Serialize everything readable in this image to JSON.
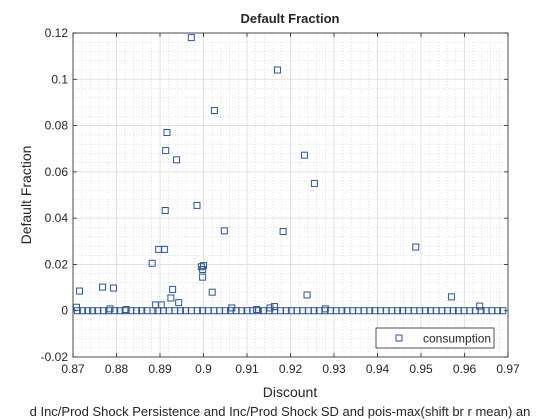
{
  "colors": {
    "background": "#ffffff",
    "axes_background": "#ffffff",
    "axis": "#262626",
    "grid_major": "#dcdcdc",
    "grid_minor": "#cfcfcf",
    "marker": "#2f5597"
  },
  "chart_data": {
    "type": "scatter",
    "title": "Default Fraction",
    "xlabel": "Discount",
    "ylabel": "Default Fraction",
    "footer_label": "d Inc/Prod Shock Persistence and Inc/Prod Shock SD and pois-max(shift br r mean) an",
    "xlim": [
      0.87,
      0.97
    ],
    "ylim": [
      -0.02,
      0.12
    ],
    "xticks": [
      0.87,
      0.88,
      0.89,
      0.9,
      0.91,
      0.92,
      0.93,
      0.94,
      0.95,
      0.96,
      0.97
    ],
    "xtick_labels": [
      "0.87",
      "0.88",
      "0.89",
      "0.9",
      "0.91",
      "0.92",
      "0.93",
      "0.94",
      "0.95",
      "0.96",
      "0.97"
    ],
    "yticks": [
      -0.02,
      0,
      0.02,
      0.04,
      0.06,
      0.08,
      0.1,
      0.12
    ],
    "ytick_labels": [
      "-0.02",
      "0",
      "0.02",
      "0.04",
      "0.06",
      "0.08",
      "0.1",
      "0.12"
    ],
    "grid": "major and minor",
    "legend": {
      "position": "bottom-right",
      "entries": [
        "consumption"
      ],
      "marker": "square"
    },
    "series": [
      {
        "name": "consumption",
        "marker": "square",
        "points": [
          {
            "x": 0.8708,
            "y": 0.0015
          },
          {
            "x": 0.8715,
            "y": 0.0085
          },
          {
            "x": 0.8768,
            "y": 0.0102
          },
          {
            "x": 0.8793,
            "y": 0.0098
          },
          {
            "x": 0.8785,
            "y": 0.0008
          },
          {
            "x": 0.8822,
            "y": 0.0005
          },
          {
            "x": 0.8882,
            "y": 0.0205
          },
          {
            "x": 0.889,
            "y": 0.0025
          },
          {
            "x": 0.8897,
            "y": 0.0265
          },
          {
            "x": 0.8903,
            "y": 0.0025
          },
          {
            "x": 0.891,
            "y": 0.0265
          },
          {
            "x": 0.8912,
            "y": 0.0433
          },
          {
            "x": 0.8913,
            "y": 0.0692
          },
          {
            "x": 0.8916,
            "y": 0.077
          },
          {
            "x": 0.8925,
            "y": 0.0055
          },
          {
            "x": 0.8929,
            "y": 0.0092
          },
          {
            "x": 0.8938,
            "y": 0.0652
          },
          {
            "x": 0.8943,
            "y": 0.0035
          },
          {
            "x": 0.8972,
            "y": 0.118
          },
          {
            "x": 0.8985,
            "y": 0.0455
          },
          {
            "x": 0.8995,
            "y": 0.019
          },
          {
            "x": 0.8998,
            "y": 0.0145
          },
          {
            "x": 0.8998,
            "y": 0.0178
          },
          {
            "x": 0.9,
            "y": 0.0195
          },
          {
            "x": 0.902,
            "y": 0.008
          },
          {
            "x": 0.9025,
            "y": 0.0865
          },
          {
            "x": 0.9048,
            "y": 0.0345
          },
          {
            "x": 0.9065,
            "y": 0.0012
          },
          {
            "x": 0.9122,
            "y": 0.0005
          },
          {
            "x": 0.9153,
            "y": 0.0012
          },
          {
            "x": 0.9163,
            "y": 0.0018
          },
          {
            "x": 0.917,
            "y": 0.104
          },
          {
            "x": 0.9183,
            "y": 0.0342
          },
          {
            "x": 0.9232,
            "y": 0.0672
          },
          {
            "x": 0.9238,
            "y": 0.0068
          },
          {
            "x": 0.9255,
            "y": 0.055
          },
          {
            "x": 0.928,
            "y": 0.0008
          },
          {
            "x": 0.9488,
            "y": 0.0275
          },
          {
            "x": 0.957,
            "y": 0.006
          },
          {
            "x": 0.9635,
            "y": 0.002
          },
          {
            "x": 0.871,
            "y": 0
          },
          {
            "x": 0.8722,
            "y": 0
          },
          {
            "x": 0.8734,
            "y": 0
          },
          {
            "x": 0.8745,
            "y": 0
          },
          {
            "x": 0.8757,
            "y": 0
          },
          {
            "x": 0.877,
            "y": 0
          },
          {
            "x": 0.8782,
            "y": 0
          },
          {
            "x": 0.8796,
            "y": 0
          },
          {
            "x": 0.8808,
            "y": 0
          },
          {
            "x": 0.882,
            "y": 0
          },
          {
            "x": 0.8833,
            "y": 0
          },
          {
            "x": 0.8846,
            "y": 0
          },
          {
            "x": 0.8858,
            "y": 0
          },
          {
            "x": 0.887,
            "y": 0
          },
          {
            "x": 0.8884,
            "y": 0
          },
          {
            "x": 0.8895,
            "y": 0
          },
          {
            "x": 0.8908,
            "y": 0
          },
          {
            "x": 0.8921,
            "y": 0
          },
          {
            "x": 0.8934,
            "y": 0
          },
          {
            "x": 0.8947,
            "y": 0
          },
          {
            "x": 0.8959,
            "y": 0
          },
          {
            "x": 0.8972,
            "y": 0
          },
          {
            "x": 0.8986,
            "y": 0
          },
          {
            "x": 0.8998,
            "y": 0
          },
          {
            "x": 0.9011,
            "y": 0
          },
          {
            "x": 0.9024,
            "y": 0
          },
          {
            "x": 0.9037,
            "y": 0
          },
          {
            "x": 0.905,
            "y": 0
          },
          {
            "x": 0.9062,
            "y": 0
          },
          {
            "x": 0.9075,
            "y": 0
          },
          {
            "x": 0.9088,
            "y": 0
          },
          {
            "x": 0.91,
            "y": 0
          },
          {
            "x": 0.9113,
            "y": 0
          },
          {
            "x": 0.9126,
            "y": 0
          },
          {
            "x": 0.9138,
            "y": 0
          },
          {
            "x": 0.9151,
            "y": 0
          },
          {
            "x": 0.9164,
            "y": 0
          },
          {
            "x": 0.9177,
            "y": 0
          },
          {
            "x": 0.919,
            "y": 0
          },
          {
            "x": 0.9202,
            "y": 0
          },
          {
            "x": 0.9215,
            "y": 0
          },
          {
            "x": 0.9228,
            "y": 0
          },
          {
            "x": 0.9241,
            "y": 0
          },
          {
            "x": 0.9254,
            "y": 0
          },
          {
            "x": 0.9266,
            "y": 0
          },
          {
            "x": 0.9279,
            "y": 0
          },
          {
            "x": 0.9292,
            "y": 0
          },
          {
            "x": 0.9305,
            "y": 0
          },
          {
            "x": 0.9318,
            "y": 0
          },
          {
            "x": 0.933,
            "y": 0
          },
          {
            "x": 0.9343,
            "y": 0
          },
          {
            "x": 0.9356,
            "y": 0
          },
          {
            "x": 0.9369,
            "y": 0
          },
          {
            "x": 0.9382,
            "y": 0
          },
          {
            "x": 0.9394,
            "y": 0
          },
          {
            "x": 0.9407,
            "y": 0
          },
          {
            "x": 0.942,
            "y": 0
          },
          {
            "x": 0.9433,
            "y": 0
          },
          {
            "x": 0.9446,
            "y": 0
          },
          {
            "x": 0.9458,
            "y": 0
          },
          {
            "x": 0.9471,
            "y": 0
          },
          {
            "x": 0.9484,
            "y": 0
          },
          {
            "x": 0.9497,
            "y": 0
          },
          {
            "x": 0.951,
            "y": 0
          },
          {
            "x": 0.9522,
            "y": 0
          },
          {
            "x": 0.9535,
            "y": 0
          },
          {
            "x": 0.9548,
            "y": 0
          },
          {
            "x": 0.9561,
            "y": 0
          },
          {
            "x": 0.9574,
            "y": 0
          },
          {
            "x": 0.9586,
            "y": 0
          },
          {
            "x": 0.9599,
            "y": 0
          },
          {
            "x": 0.9612,
            "y": 0
          },
          {
            "x": 0.9625,
            "y": 0
          },
          {
            "x": 0.9638,
            "y": 0
          },
          {
            "x": 0.965,
            "y": 0
          },
          {
            "x": 0.9663,
            "y": 0
          },
          {
            "x": 0.9676,
            "y": 0
          },
          {
            "x": 0.9688,
            "y": 0
          }
        ]
      }
    ]
  }
}
